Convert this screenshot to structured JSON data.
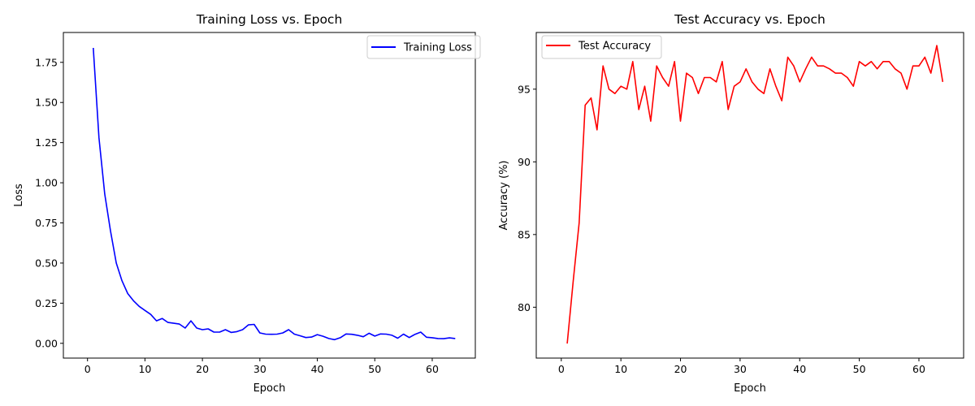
{
  "chart_data": [
    {
      "type": "line",
      "title": "Training Loss vs. Epoch",
      "xlabel": "Epoch",
      "ylabel": "Loss",
      "xlim": [
        -4.2,
        67.5
      ],
      "ylim": [
        -0.092,
        1.936
      ],
      "xticks": [
        0,
        10,
        20,
        30,
        40,
        50,
        60
      ],
      "yticks": [
        0.0,
        0.25,
        0.5,
        0.75,
        1.0,
        1.25,
        1.5,
        1.75
      ],
      "ytick_labels": [
        "0.00",
        "0.25",
        "0.50",
        "0.75",
        "1.00",
        "1.25",
        "1.50",
        "1.75"
      ],
      "legend_position": "top-right",
      "grid": false,
      "series": [
        {
          "name": "Training Loss",
          "color": "#0000ff",
          "x": [
            1,
            2,
            3,
            4,
            5,
            6,
            7,
            8,
            9,
            10,
            11,
            12,
            13,
            14,
            15,
            16,
            17,
            18,
            19,
            20,
            21,
            22,
            23,
            24,
            25,
            26,
            27,
            28,
            29,
            30,
            31,
            32,
            33,
            34,
            35,
            36,
            37,
            38,
            39,
            40,
            41,
            42,
            43,
            44,
            45,
            46,
            47,
            48,
            49,
            50,
            51,
            52,
            53,
            54,
            55,
            56,
            57,
            58,
            59,
            60,
            61,
            62,
            63,
            64
          ],
          "values": [
            1.84,
            1.28,
            0.93,
            0.7,
            0.5,
            0.39,
            0.31,
            0.265,
            0.23,
            0.205,
            0.18,
            0.14,
            0.155,
            0.13,
            0.125,
            0.12,
            0.095,
            0.14,
            0.095,
            0.085,
            0.09,
            0.07,
            0.07,
            0.085,
            0.068,
            0.073,
            0.085,
            0.115,
            0.118,
            0.065,
            0.057,
            0.056,
            0.057,
            0.065,
            0.085,
            0.057,
            0.047,
            0.036,
            0.039,
            0.054,
            0.044,
            0.03,
            0.023,
            0.035,
            0.058,
            0.056,
            0.05,
            0.041,
            0.063,
            0.045,
            0.058,
            0.057,
            0.05,
            0.032,
            0.057,
            0.036,
            0.056,
            0.07,
            0.038,
            0.035,
            0.03,
            0.029,
            0.034,
            0.03
          ]
        }
      ]
    },
    {
      "type": "line",
      "title": "Test Accuracy vs. Epoch",
      "xlabel": "Epoch",
      "ylabel": "Accuracy (%)",
      "xlim": [
        -4.2,
        67.5
      ],
      "ylim": [
        76.5,
        98.9
      ],
      "xticks": [
        0,
        10,
        20,
        30,
        40,
        50,
        60
      ],
      "yticks": [
        80,
        85,
        90,
        95
      ],
      "ytick_labels": [
        "80",
        "85",
        "90",
        "95"
      ],
      "legend_position": "top-left",
      "grid": false,
      "series": [
        {
          "name": "Test Accuracy",
          "color": "#ff0000",
          "x": [
            1,
            2,
            3,
            4,
            5,
            6,
            7,
            8,
            9,
            10,
            11,
            12,
            13,
            14,
            15,
            16,
            17,
            18,
            19,
            20,
            21,
            22,
            23,
            24,
            25,
            26,
            27,
            28,
            29,
            30,
            31,
            32,
            33,
            34,
            35,
            36,
            37,
            38,
            39,
            40,
            41,
            42,
            43,
            44,
            45,
            46,
            47,
            48,
            49,
            50,
            51,
            52,
            53,
            54,
            55,
            56,
            57,
            58,
            59,
            60,
            61,
            62,
            63,
            64
          ],
          "values": [
            77.5,
            81.8,
            85.8,
            93.9,
            94.4,
            92.2,
            96.6,
            95.0,
            94.7,
            95.2,
            95.0,
            96.9,
            93.6,
            95.2,
            92.8,
            96.6,
            95.8,
            95.2,
            96.9,
            92.8,
            96.1,
            95.8,
            94.7,
            95.8,
            95.8,
            95.5,
            96.9,
            93.6,
            95.2,
            95.5,
            96.4,
            95.5,
            95.0,
            94.7,
            96.4,
            95.2,
            94.2,
            97.2,
            96.6,
            95.5,
            96.4,
            97.2,
            96.6,
            96.6,
            96.4,
            96.1,
            96.1,
            95.8,
            95.2,
            96.9,
            96.6,
            96.9,
            96.4,
            96.9,
            96.9,
            96.4,
            96.1,
            95.0,
            96.6,
            96.6,
            97.2,
            96.1,
            98.0,
            95.5
          ]
        }
      ]
    }
  ]
}
